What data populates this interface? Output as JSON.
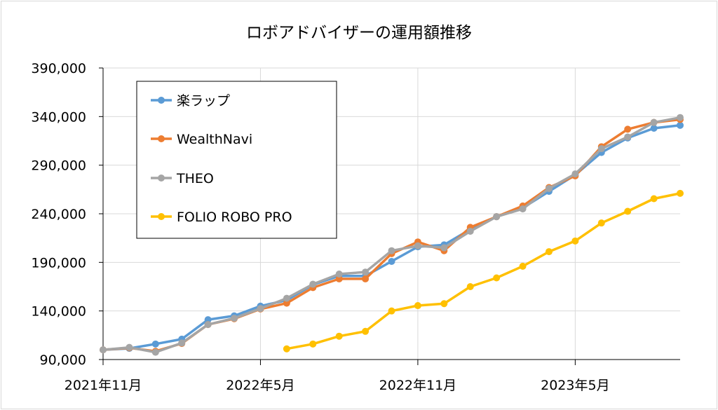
{
  "chart_data": {
    "type": "line",
    "title": "ロボアドバイザーの運用額推移",
    "xlabel": "",
    "ylabel": "",
    "ylim": [
      90000,
      390000
    ],
    "yticks": [
      "90,000",
      "140,000",
      "190,000",
      "240,000",
      "290,000",
      "340,000",
      "390,000"
    ],
    "ytick_values": [
      90000,
      140000,
      190000,
      240000,
      290000,
      340000,
      390000
    ],
    "xtick_labels": [
      "2021年11月",
      "2022年5月",
      "2022年11月",
      "2023年5月"
    ],
    "x": [
      "2021-11",
      "2021-12",
      "2022-01",
      "2022-02",
      "2022-03",
      "2022-04",
      "2022-05",
      "2022-06",
      "2022-07",
      "2022-08",
      "2022-09",
      "2022-10",
      "2022-11",
      "2022-12",
      "2023-01",
      "2023-02",
      "2023-03",
      "2023-04",
      "2023-05",
      "2023-06",
      "2023-07",
      "2023-08",
      "2023-09"
    ],
    "grid": true,
    "legend_position": "top-left",
    "series": [
      {
        "name": "楽ラップ",
        "color": "#5B9BD5",
        "values": [
          100000,
          101500,
          106000,
          111000,
          131000,
          135000,
          145000,
          151000,
          167000,
          176000,
          176000,
          191000,
          206000,
          208000,
          224000,
          237000,
          246000,
          263000,
          280000,
          303000,
          318000,
          328000,
          331000
        ]
      },
      {
        "name": "WealthNavi",
        "color": "#ED7D31",
        "values": [
          100000,
          102000,
          98500,
          106500,
          126000,
          132000,
          142000,
          148000,
          164000,
          173000,
          173000,
          199000,
          211000,
          202000,
          226000,
          237000,
          248000,
          267000,
          279000,
          309000,
          327000,
          334000,
          337000
        ]
      },
      {
        "name": "THEO",
        "color": "#A5A5A5",
        "values": [
          100000,
          102500,
          97500,
          107000,
          126000,
          132500,
          142500,
          153000,
          167500,
          178000,
          180000,
          202000,
          207000,
          205000,
          222000,
          237000,
          245000,
          266000,
          281000,
          307000,
          319000,
          334000,
          339000
        ]
      },
      {
        "name": "FOLIO ROBO PRO",
        "color": "#FFC000",
        "values": [
          null,
          null,
          null,
          null,
          null,
          null,
          null,
          101000,
          106000,
          114000,
          119000,
          140000,
          145500,
          147500,
          165000,
          174000,
          186000,
          201000,
          212000,
          230500,
          242500,
          255500,
          261000
        ]
      }
    ]
  }
}
